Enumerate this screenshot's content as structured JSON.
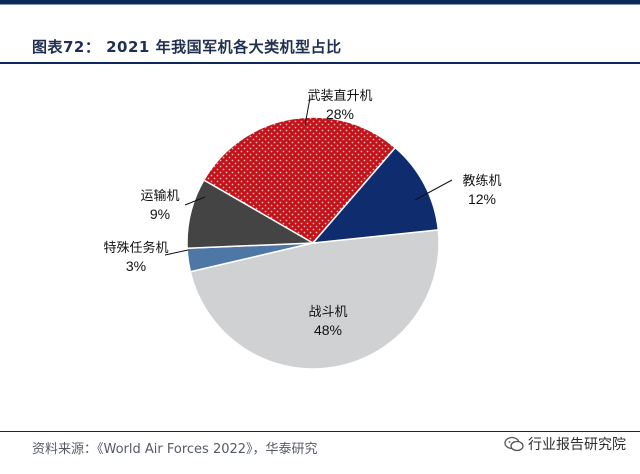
{
  "title": "图表72： 2021 年我国军机各大类机型占比",
  "source": "资料来源：《World Air Forces 2022》，华泰研究",
  "watermark": "行业报告研究院",
  "chart_data": {
    "type": "pie",
    "title": "2021 年我国军机各大类机型占比",
    "start_angle_deg": -6,
    "slices": [
      {
        "label": "战斗机",
        "value_label": "48%",
        "value": 48,
        "color": "#d0d1d3",
        "pattern": "none"
      },
      {
        "label": "特殊任务机",
        "value_label": "3%",
        "value": 3,
        "color": "#4f77a6",
        "pattern": "none"
      },
      {
        "label": "运输机",
        "value_label": "9%",
        "value": 9,
        "color": "#444444",
        "pattern": "none"
      },
      {
        "label": "武装直升机",
        "value_label": "28%",
        "value": 28,
        "color": "#c0141b",
        "pattern": "dots"
      },
      {
        "label": "教练机",
        "value_label": "12%",
        "value": 12,
        "color": "#0f2d6e",
        "pattern": "none"
      }
    ]
  }
}
